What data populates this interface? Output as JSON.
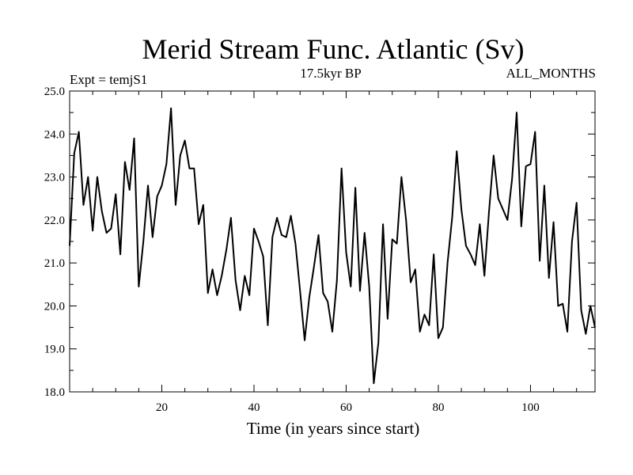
{
  "chart_data": {
    "type": "line",
    "title": "Merid Stream Func. Atlantic (Sv)",
    "subtitle": "17.5kyr BP",
    "left_label": "Expt = temjS1",
    "right_label": "ALL_MONTHS",
    "xlabel": "Time (in years since start)",
    "ylabel": "",
    "xlim": [
      0,
      114
    ],
    "ylim": [
      18.0,
      25.0
    ],
    "x_ticks": [
      20,
      40,
      60,
      80,
      100
    ],
    "y_ticks": [
      18.0,
      19.0,
      20.0,
      21.0,
      22.0,
      23.0,
      24.0,
      25.0
    ],
    "y_tick_labels": [
      "18.0",
      "19.0",
      "20.0",
      "21.0",
      "22.0",
      "23.0",
      "24.0",
      "25.0"
    ],
    "x_tick_labels": [
      "20",
      "40",
      "60",
      "80",
      "100"
    ],
    "grid": false,
    "series": [
      {
        "name": "Merid Stream Func.",
        "x": [
          0,
          1,
          2,
          3,
          4,
          5,
          6,
          7,
          8,
          9,
          10,
          11,
          12,
          13,
          14,
          15,
          16,
          17,
          18,
          19,
          20,
          21,
          22,
          23,
          24,
          25,
          26,
          27,
          28,
          29,
          30,
          31,
          32,
          33,
          34,
          35,
          36,
          37,
          38,
          39,
          40,
          41,
          42,
          43,
          44,
          45,
          46,
          47,
          48,
          49,
          50,
          51,
          52,
          53,
          54,
          55,
          56,
          57,
          58,
          59,
          60,
          61,
          62,
          63,
          64,
          65,
          66,
          67,
          68,
          69,
          70,
          71,
          72,
          73,
          74,
          75,
          76,
          77,
          78,
          79,
          80,
          81,
          82,
          83,
          84,
          85,
          86,
          87,
          88,
          89,
          90,
          91,
          92,
          93,
          94,
          95,
          96,
          97,
          98,
          99,
          100,
          101,
          102,
          103,
          104,
          105,
          106,
          107,
          108,
          109,
          110,
          111,
          112,
          113,
          114
        ],
        "values": [
          21.4,
          23.55,
          24.05,
          22.35,
          23.0,
          21.75,
          23.0,
          22.2,
          21.7,
          21.8,
          22.6,
          21.2,
          23.35,
          22.7,
          23.9,
          20.45,
          21.5,
          22.8,
          21.6,
          22.55,
          22.8,
          23.3,
          24.6,
          22.35,
          23.5,
          23.85,
          23.2,
          23.2,
          21.9,
          22.35,
          20.3,
          20.85,
          20.25,
          20.7,
          21.3,
          22.05,
          20.6,
          19.9,
          20.7,
          20.25,
          21.8,
          21.5,
          21.15,
          19.55,
          21.6,
          22.05,
          21.65,
          21.6,
          22.1,
          21.45,
          20.35,
          19.2,
          20.2,
          20.9,
          21.65,
          20.3,
          20.1,
          19.4,
          20.6,
          23.2,
          21.25,
          20.45,
          22.75,
          20.35,
          21.7,
          20.45,
          18.2,
          19.15,
          21.9,
          19.7,
          21.55,
          21.45,
          23.0,
          22.0,
          20.55,
          20.85,
          19.4,
          19.8,
          19.55,
          21.2,
          19.25,
          19.5,
          21.0,
          22.05,
          23.6,
          22.25,
          21.4,
          21.2,
          20.95,
          21.9,
          20.7,
          22.2,
          23.5,
          22.5,
          22.25,
          22.0,
          22.95,
          24.5,
          21.85,
          23.25,
          23.3,
          24.05,
          21.05,
          22.8,
          20.65,
          21.95,
          20.0,
          20.05,
          19.4,
          21.5,
          22.4,
          19.9,
          19.35,
          20.0,
          19.5
        ]
      }
    ]
  }
}
